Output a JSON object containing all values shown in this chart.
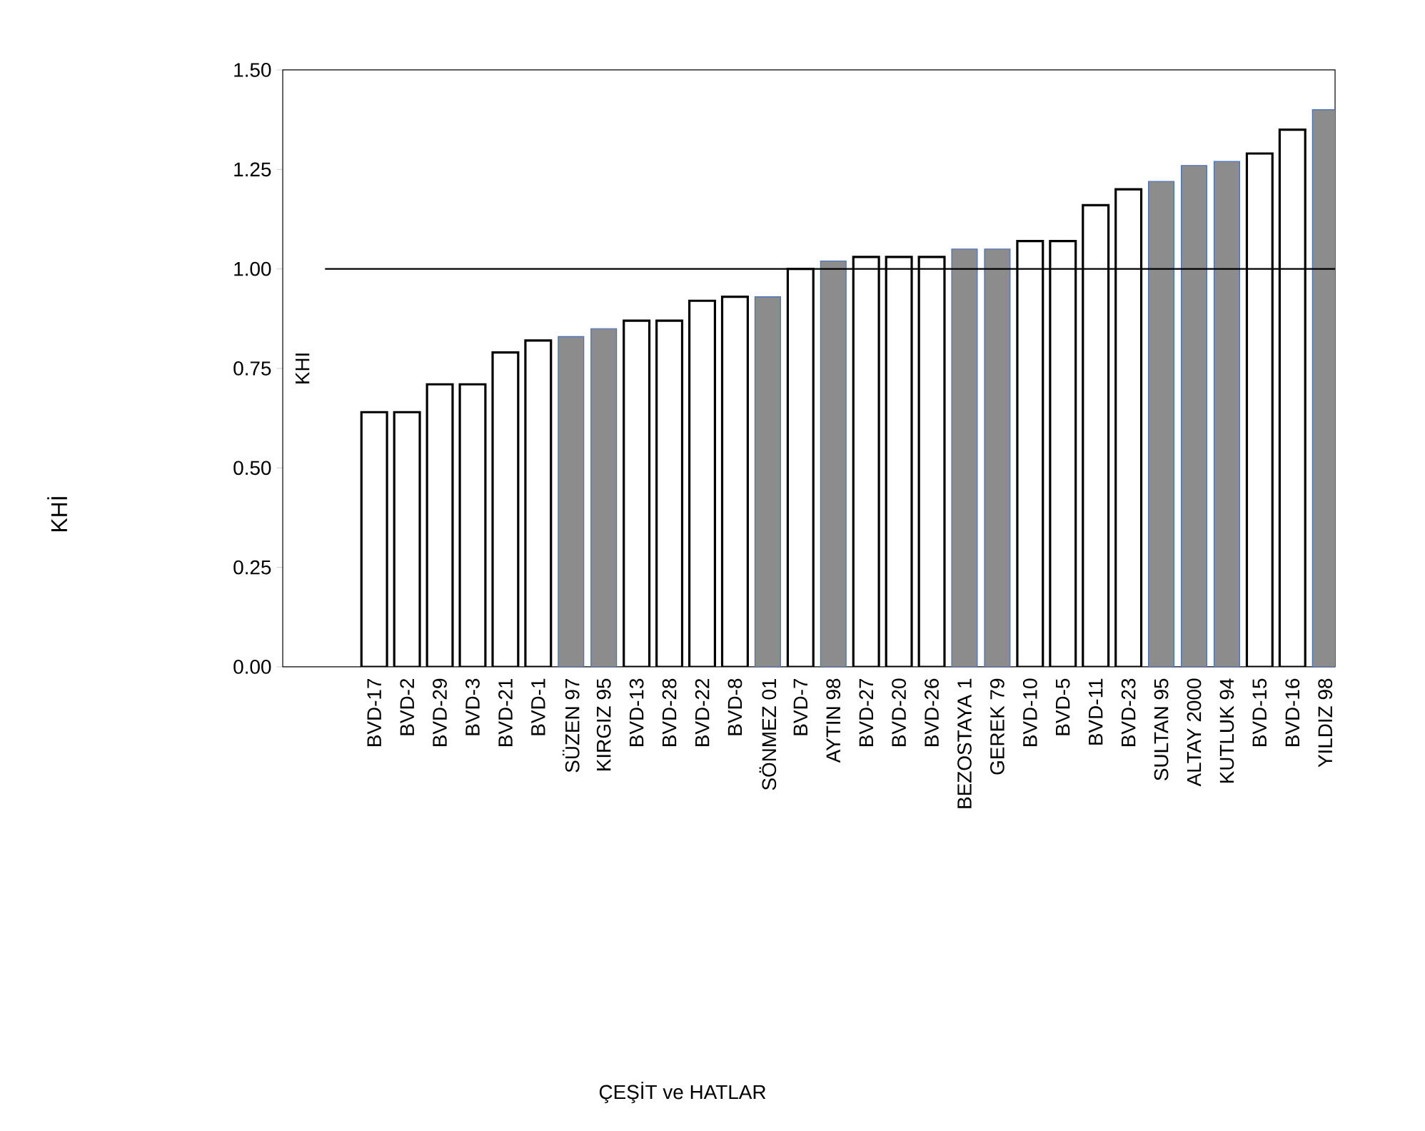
{
  "chart_data": {
    "type": "bar",
    "ylabel": "KHI",
    "annotations": [
      "KHİ",
      "ÇEŞİT ve HATLAR"
    ],
    "categories": [
      "BVD-17",
      "BVD-2",
      "BVD-29",
      "BVD-3",
      "BVD-21",
      "BVD-1",
      "SÜZEN 97",
      "KIRGIZ 95",
      "BVD-13",
      "BVD-28",
      "BVD-22",
      "BVD-8",
      "SÖNMEZ 01",
      "BVD-7",
      "AYTIN 98",
      "BVD-27",
      "BVD-20",
      "BVD-26",
      "BEZOSTAYA 1",
      "GEREK 79",
      "BVD-10",
      "BVD-5",
      "BVD-11",
      "BVD-23",
      "SULTAN 95",
      "ALTAY 2000",
      "KUTLUK 94",
      "BVD-15",
      "BVD-16",
      "YILDIZ 98"
    ],
    "values": [
      0.64,
      0.64,
      0.71,
      0.71,
      0.79,
      0.82,
      0.83,
      0.85,
      0.87,
      0.87,
      0.92,
      0.93,
      0.93,
      1.0,
      1.02,
      1.03,
      1.03,
      1.03,
      1.05,
      1.05,
      1.07,
      1.07,
      1.16,
      1.2,
      1.22,
      1.26,
      1.27,
      1.29,
      1.35,
      1.4
    ],
    "colors": [
      "#ffffff",
      "#ffffff",
      "#ffffff",
      "#ffffff",
      "#ffffff",
      "#ffffff",
      "#8c8c8c",
      "#8c8c8c",
      "#ffffff",
      "#ffffff",
      "#ffffff",
      "#ffffff",
      "#8c8c8c",
      "#ffffff",
      "#8c8c8c",
      "#ffffff",
      "#ffffff",
      "#ffffff",
      "#8c8c8c",
      "#8c8c8c",
      "#ffffff",
      "#ffffff",
      "#ffffff",
      "#ffffff",
      "#8c8c8c",
      "#8c8c8c",
      "#8c8c8c",
      "#ffffff",
      "#ffffff",
      "#8c8c8c"
    ],
    "ylim": [
      0,
      1.5
    ],
    "yticks": [
      {
        "value": 0,
        "label": "0.00"
      },
      {
        "value": 0.25,
        "label": "0.25"
      },
      {
        "value": 0.5,
        "label": "0.50"
      },
      {
        "value": 0.75,
        "label": "0.75"
      },
      {
        "value": 1,
        "label": "1.00"
      },
      {
        "value": 1.25,
        "label": "1.25"
      },
      {
        "value": 1.5,
        "label": "1.50"
      }
    ],
    "ref_lines": [
      {
        "axis": "y",
        "value": 1
      }
    ]
  }
}
